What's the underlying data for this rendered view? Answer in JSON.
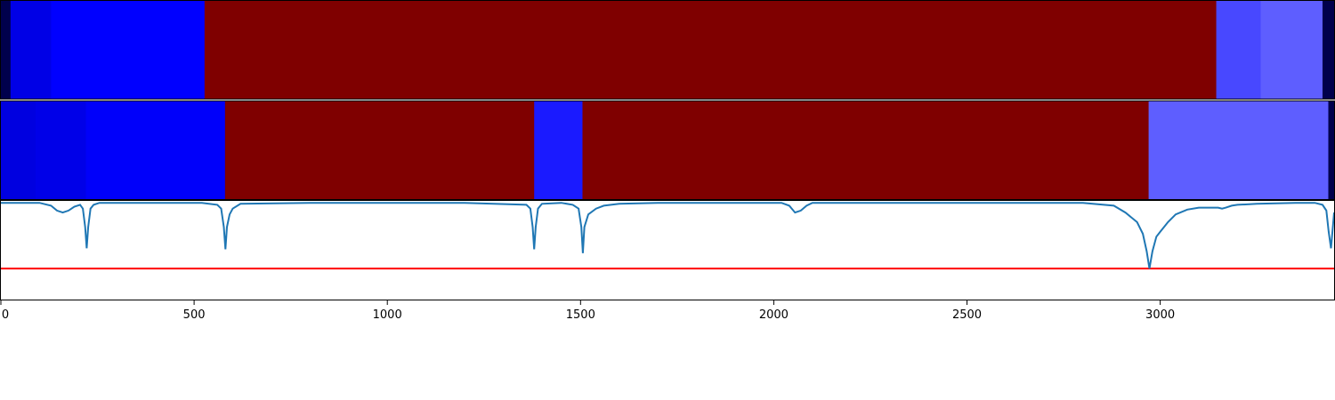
{
  "chart_data": [
    {
      "type": "heatmap",
      "panel": "top",
      "xlim": [
        0,
        3450
      ],
      "segments": [
        {
          "start": 0,
          "end": 25,
          "color": "#00004c"
        },
        {
          "start": 25,
          "end": 130,
          "color": "#0000e6"
        },
        {
          "start": 130,
          "end": 527,
          "color": "#0000ff"
        },
        {
          "start": 527,
          "end": 3145,
          "color": "#7f0000"
        },
        {
          "start": 3145,
          "end": 3260,
          "color": "#4848ff"
        },
        {
          "start": 3260,
          "end": 3420,
          "color": "#5e5eff"
        },
        {
          "start": 3420,
          "end": 3450,
          "color": "#00004c"
        }
      ]
    },
    {
      "type": "heatmap",
      "panel": "middle",
      "xlim": [
        0,
        3450
      ],
      "segments": [
        {
          "start": 0,
          "end": 90,
          "color": "#0000e0"
        },
        {
          "start": 90,
          "end": 220,
          "color": "#0000e8"
        },
        {
          "start": 220,
          "end": 580,
          "color": "#0000fa"
        },
        {
          "start": 580,
          "end": 1380,
          "color": "#7f0000"
        },
        {
          "start": 1380,
          "end": 1505,
          "color": "#1a1aff"
        },
        {
          "start": 1505,
          "end": 2970,
          "color": "#7f0000"
        },
        {
          "start": 2970,
          "end": 3435,
          "color": "#5e5eff"
        },
        {
          "start": 3435,
          "end": 3450,
          "color": "#00004c"
        }
      ]
    },
    {
      "type": "line",
      "panel": "bottom",
      "xlim": [
        0,
        3450
      ],
      "ylim": [
        -1.0,
        0.02
      ],
      "xticks": [
        0,
        500,
        1000,
        1500,
        2000,
        2500,
        3000
      ],
      "threshold": {
        "y": -0.68,
        "color": "#ff0000"
      },
      "series": [
        {
          "color": "#1f77b4",
          "x": [
            0,
            100,
            130,
            145,
            160,
            175,
            190,
            205,
            212,
            218,
            222,
            226,
            232,
            240,
            255,
            300,
            440,
            520,
            560,
            570,
            577,
            581,
            585,
            592,
            600,
            620,
            800,
            1200,
            1360,
            1370,
            1376,
            1380,
            1384,
            1390,
            1400,
            1450,
            1480,
            1495,
            1502,
            1506,
            1510,
            1520,
            1540,
            1560,
            1600,
            1700,
            1900,
            2020,
            2040,
            2055,
            2070,
            2085,
            2100,
            2300,
            2600,
            2800,
            2880,
            2910,
            2940,
            2955,
            2965,
            2972,
            2980,
            2990,
            3000,
            3020,
            3040,
            3070,
            3100,
            3150,
            3160,
            3170,
            3185,
            3200,
            3250,
            3350,
            3400,
            3420,
            3430,
            3436,
            3442,
            3450
          ],
          "y": [
            0.0,
            0.0,
            -0.03,
            -0.08,
            -0.1,
            -0.08,
            -0.04,
            -0.02,
            -0.06,
            -0.25,
            -0.47,
            -0.25,
            -0.06,
            -0.02,
            0.0,
            0.0,
            0.0,
            0.0,
            -0.02,
            -0.06,
            -0.25,
            -0.48,
            -0.25,
            -0.12,
            -0.06,
            -0.01,
            0.0,
            0.0,
            -0.02,
            -0.06,
            -0.25,
            -0.48,
            -0.25,
            -0.06,
            -0.01,
            0.0,
            -0.02,
            -0.06,
            -0.25,
            -0.52,
            -0.25,
            -0.12,
            -0.06,
            -0.03,
            -0.01,
            0.0,
            0.0,
            0.0,
            -0.03,
            -0.1,
            -0.08,
            -0.03,
            0.0,
            0.0,
            0.0,
            0.0,
            -0.03,
            -0.1,
            -0.2,
            -0.32,
            -0.5,
            -0.68,
            -0.5,
            -0.35,
            -0.3,
            -0.2,
            -0.12,
            -0.07,
            -0.05,
            -0.05,
            -0.06,
            -0.05,
            -0.03,
            -0.02,
            -0.01,
            0.0,
            0.0,
            -0.02,
            -0.08,
            -0.3,
            -0.47,
            -0.1
          ]
        }
      ]
    }
  ]
}
